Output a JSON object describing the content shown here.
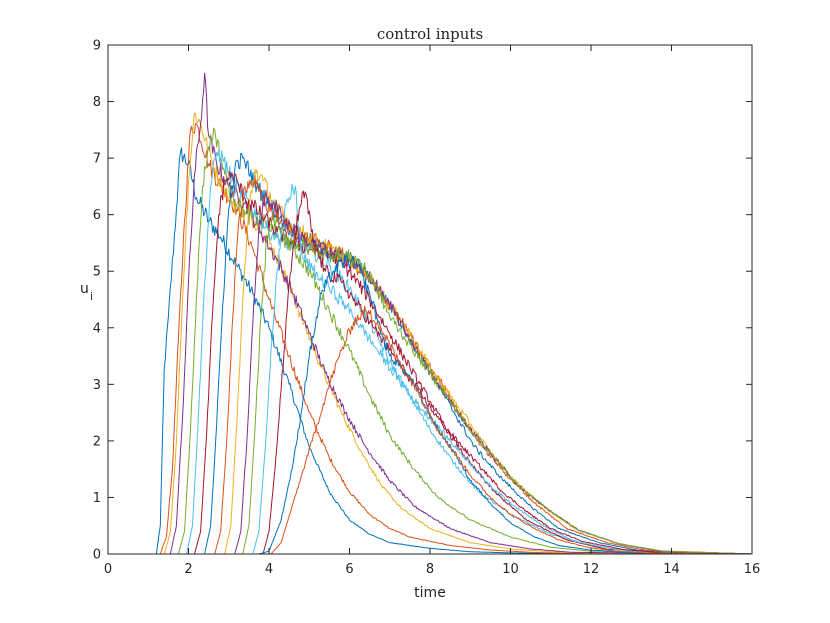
{
  "chart_data": {
    "type": "line",
    "title": "control inputs",
    "xlabel": "time",
    "ylabel": "u",
    "ylabel_subscript": "i",
    "xlim": [
      0,
      16
    ],
    "ylim": [
      0,
      9
    ],
    "xticks": [
      0,
      2,
      4,
      6,
      8,
      10,
      12,
      14,
      16
    ],
    "yticks": [
      0,
      1,
      2,
      3,
      4,
      5,
      6,
      7,
      8,
      9
    ],
    "grid": false,
    "legend": "none",
    "colors": [
      "#0072BD",
      "#D95319",
      "#EDB120",
      "#7E2F8E",
      "#77AC30",
      "#4DBEEE",
      "#A2142F"
    ],
    "series": [
      {
        "x": [
          0,
          1.2,
          1.3,
          1.4,
          1.5,
          1.7,
          1.8,
          2.0,
          2.2,
          2.5,
          2.8,
          3.2,
          3.6,
          4.0,
          4.5,
          5.0,
          5.5,
          6.0,
          6.5,
          7.0,
          8.0,
          9.0,
          10.0,
          11.0,
          16.0
        ],
        "y": [
          0,
          0,
          0.5,
          3.3,
          4.2,
          6.1,
          7.1,
          6.9,
          6.3,
          5.9,
          5.6,
          5.1,
          4.6,
          4.0,
          3.0,
          1.9,
          1.1,
          0.6,
          0.35,
          0.2,
          0.1,
          0.04,
          0.02,
          0.01,
          0
        ]
      },
      {
        "x": [
          0,
          1.3,
          1.45,
          1.6,
          1.75,
          1.9,
          2.05,
          2.2,
          2.5,
          2.8,
          3.2,
          3.6,
          4.0,
          4.5,
          5.0,
          5.5,
          6.0,
          6.5,
          7.0,
          7.5,
          8.5,
          9.5,
          10.5,
          11.5,
          16.0
        ],
        "y": [
          0,
          0,
          0.3,
          1.5,
          3.8,
          5.9,
          7.5,
          7.6,
          6.9,
          6.5,
          6.1,
          5.4,
          4.5,
          3.5,
          2.5,
          1.7,
          1.1,
          0.7,
          0.45,
          0.3,
          0.15,
          0.07,
          0.03,
          0.01,
          0
        ]
      },
      {
        "x": [
          0,
          1.4,
          1.55,
          1.7,
          1.85,
          2.0,
          2.15,
          2.3,
          2.6,
          3.0,
          3.4,
          3.8,
          4.3,
          4.8,
          5.3,
          5.8,
          6.3,
          6.8,
          7.3,
          8.0,
          9.0,
          10.0,
          11.0,
          12.0,
          16.0
        ],
        "y": [
          0,
          0,
          0.4,
          2.0,
          4.5,
          6.6,
          7.8,
          7.6,
          6.9,
          6.3,
          6.0,
          5.8,
          5.1,
          4.2,
          3.3,
          2.5,
          1.8,
          1.2,
          0.8,
          0.45,
          0.2,
          0.09,
          0.04,
          0.015,
          0
        ]
      },
      {
        "x": [
          0,
          1.55,
          1.7,
          1.85,
          2.0,
          2.15,
          2.3,
          2.4,
          2.5,
          2.7,
          3.0,
          3.4,
          3.8,
          4.2,
          4.6,
          5.0,
          5.4,
          5.9,
          6.4,
          7.0,
          7.6,
          8.5,
          9.5,
          10.5,
          11.5,
          16.0
        ],
        "y": [
          0,
          0,
          0.5,
          2.4,
          4.8,
          6.7,
          7.6,
          8.5,
          7.4,
          6.9,
          6.5,
          6.2,
          5.7,
          5.2,
          4.6,
          3.9,
          3.2,
          2.5,
          1.9,
          1.3,
          0.85,
          0.45,
          0.2,
          0.09,
          0.03,
          0
        ]
      },
      {
        "x": [
          0,
          1.75,
          1.9,
          2.05,
          2.2,
          2.35,
          2.5,
          2.65,
          2.8,
          3.0,
          3.4,
          3.8,
          4.2,
          4.6,
          5.0,
          5.5,
          6.0,
          6.5,
          7.0,
          7.6,
          8.2,
          9.0,
          10.0,
          11.0,
          12.0,
          16.0
        ],
        "y": [
          0,
          0,
          0.4,
          2.2,
          4.6,
          6.5,
          7.2,
          7.5,
          7.0,
          6.5,
          6.0,
          5.9,
          5.7,
          5.4,
          5.0,
          4.3,
          3.6,
          2.8,
          2.1,
          1.5,
          1.0,
          0.6,
          0.3,
          0.12,
          0.05,
          0
        ]
      },
      {
        "x": [
          0,
          1.95,
          2.1,
          2.25,
          2.4,
          2.55,
          2.7,
          2.85,
          3.1,
          3.5,
          4.0,
          4.5,
          5.0,
          5.5,
          6.0,
          6.5,
          7.0,
          7.5,
          8.0,
          8.6,
          9.2,
          10.0,
          11.0,
          12.0,
          13.0,
          16.0
        ],
        "y": [
          0,
          0,
          0.5,
          2.5,
          4.8,
          6.5,
          7.1,
          7.0,
          6.6,
          6.2,
          5.7,
          5.5,
          5.4,
          5.1,
          4.7,
          4.1,
          3.4,
          2.8,
          2.2,
          1.6,
          1.1,
          0.7,
          0.35,
          0.15,
          0.05,
          0
        ]
      },
      {
        "x": [
          0,
          2.15,
          2.3,
          2.45,
          2.6,
          2.75,
          2.9,
          3.1,
          3.4,
          3.8,
          4.2,
          4.6,
          5.0,
          5.5,
          6.0,
          6.5,
          7.0,
          7.5,
          8.0,
          8.5,
          9.0,
          9.6,
          10.4,
          11.4,
          12.4,
          16.0
        ],
        "y": [
          0,
          0,
          0.4,
          2.1,
          4.3,
          6.0,
          6.6,
          6.7,
          6.3,
          6.0,
          5.7,
          5.5,
          5.4,
          5.3,
          5.0,
          4.5,
          3.9,
          3.3,
          2.7,
          2.1,
          1.6,
          1.1,
          0.6,
          0.25,
          0.08,
          0
        ]
      },
      {
        "x": [
          0,
          2.4,
          2.55,
          2.7,
          2.85,
          3.0,
          3.15,
          3.35,
          3.7,
          4.1,
          4.6,
          5.1,
          5.6,
          6.1,
          6.6,
          7.1,
          7.6,
          8.1,
          8.6,
          9.1,
          9.7,
          10.4,
          11.2,
          12.2,
          13.2,
          16.0
        ],
        "y": [
          0,
          0,
          0.5,
          2.3,
          4.4,
          6.1,
          6.8,
          7.0,
          6.5,
          6.1,
          5.7,
          5.5,
          5.3,
          5.2,
          4.8,
          4.3,
          3.7,
          3.1,
          2.5,
          1.9,
          1.4,
          0.9,
          0.45,
          0.2,
          0.06,
          0
        ]
      },
      {
        "x": [
          0,
          2.65,
          2.8,
          2.95,
          3.1,
          3.25,
          3.4,
          3.6,
          3.9,
          4.3,
          4.8,
          5.3,
          5.8,
          6.3,
          6.8,
          7.3,
          7.8,
          8.3,
          8.8,
          9.3,
          9.9,
          10.6,
          11.4,
          12.4,
          13.4,
          16.0
        ],
        "y": [
          0,
          0,
          0.4,
          2.0,
          4.2,
          5.9,
          6.5,
          6.6,
          6.2,
          5.9,
          5.6,
          5.5,
          5.3,
          5.0,
          4.6,
          4.1,
          3.5,
          3.0,
          2.4,
          1.9,
          1.4,
          0.9,
          0.45,
          0.2,
          0.06,
          0
        ]
      },
      {
        "x": [
          0,
          2.9,
          3.05,
          3.2,
          3.35,
          3.5,
          3.65,
          3.85,
          4.2,
          4.6,
          5.0,
          5.5,
          6.0,
          6.5,
          7.0,
          7.5,
          8.0,
          8.5,
          9.0,
          9.5,
          10.1,
          10.8,
          11.6,
          12.6,
          13.6,
          16.0
        ],
        "y": [
          0,
          0,
          0.5,
          2.3,
          4.5,
          6.1,
          6.8,
          6.6,
          6.1,
          5.8,
          5.6,
          5.4,
          5.2,
          4.9,
          4.4,
          3.9,
          3.3,
          2.8,
          2.3,
          1.8,
          1.3,
          0.85,
          0.45,
          0.2,
          0.06,
          0
        ]
      },
      {
        "x": [
          0,
          3.15,
          3.3,
          3.45,
          3.6,
          3.75,
          3.9,
          4.1,
          4.4,
          4.8,
          5.2,
          5.6,
          6.0,
          6.5,
          7.0,
          7.5,
          8.0,
          8.5,
          9.0,
          9.6,
          10.2,
          10.9,
          11.7,
          12.7,
          13.7,
          16.0
        ],
        "y": [
          0,
          0,
          0.4,
          2.0,
          4.1,
          5.8,
          6.3,
          6.2,
          5.9,
          5.6,
          5.4,
          5.3,
          5.2,
          4.9,
          4.4,
          3.8,
          3.2,
          2.7,
          2.2,
          1.7,
          1.2,
          0.8,
          0.42,
          0.18,
          0.05,
          0
        ]
      },
      {
        "x": [
          0,
          3.35,
          3.5,
          3.65,
          3.8,
          3.95,
          4.1,
          4.3,
          4.6,
          5.0,
          5.4,
          5.8,
          6.2,
          6.6,
          7.0,
          7.5,
          8.0,
          8.5,
          9.0,
          9.6,
          10.2,
          10.9,
          11.7,
          12.7,
          13.8,
          16.0
        ],
        "y": [
          0,
          0,
          0.5,
          2.2,
          4.2,
          5.6,
          5.9,
          5.7,
          5.5,
          5.4,
          5.3,
          5.3,
          5.2,
          4.8,
          4.2,
          3.7,
          3.2,
          2.7,
          2.2,
          1.7,
          1.2,
          0.8,
          0.42,
          0.18,
          0.05,
          0
        ]
      },
      {
        "x": [
          0,
          3.6,
          3.75,
          3.9,
          4.05,
          4.2,
          4.35,
          4.5,
          4.65,
          4.8,
          5.1,
          5.5,
          5.9,
          6.3,
          6.7,
          7.1,
          7.5,
          8.0,
          8.5,
          9.0,
          9.5,
          10.1,
          10.8,
          11.6,
          12.6,
          13.6,
          16.0
        ],
        "y": [
          0,
          0,
          0.4,
          1.8,
          3.6,
          5.0,
          5.9,
          6.3,
          6.5,
          5.3,
          5.0,
          4.7,
          4.4,
          4.0,
          3.6,
          3.2,
          2.8,
          2.4,
          2.0,
          1.6,
          1.2,
          0.85,
          0.5,
          0.22,
          0.08,
          0.02,
          0
        ]
      },
      {
        "x": [
          0,
          3.85,
          4.0,
          4.15,
          4.3,
          4.45,
          4.6,
          4.75,
          4.9,
          5.1,
          5.4,
          5.8,
          6.2,
          6.6,
          7.0,
          7.4,
          7.8,
          8.3,
          8.8,
          9.3,
          9.8,
          10.4,
          11.0,
          11.8,
          12.8,
          13.8,
          16.0
        ],
        "y": [
          0,
          0,
          0.4,
          1.5,
          2.9,
          4.3,
          5.4,
          6.1,
          6.4,
          5.5,
          5.0,
          4.8,
          4.4,
          4.0,
          3.6,
          3.2,
          2.8,
          2.3,
          1.9,
          1.5,
          1.1,
          0.75,
          0.45,
          0.22,
          0.08,
          0.02,
          0
        ]
      },
      {
        "x": [
          0,
          3.75,
          4.0,
          4.3,
          4.6,
          4.8,
          5.0,
          5.3,
          5.6,
          5.9,
          6.2,
          6.5,
          6.8,
          7.0,
          7.3,
          7.6,
          7.9,
          8.2,
          8.6,
          9.0,
          9.5,
          10.0,
          10.6,
          11.2,
          12.0,
          13.0,
          14.0,
          16.0
        ],
        "y": [
          0,
          0,
          0.05,
          0.6,
          1.6,
          2.5,
          3.5,
          4.6,
          5.0,
          5.2,
          5.1,
          4.6,
          3.9,
          3.5,
          3.3,
          3.0,
          2.6,
          2.2,
          1.8,
          1.3,
          0.9,
          0.55,
          0.3,
          0.15,
          0.07,
          0.02,
          0.01,
          0
        ]
      },
      {
        "x": [
          0,
          4.05,
          4.3,
          4.6,
          4.9,
          5.2,
          5.5,
          5.8,
          6.1,
          6.4,
          6.7,
          7.0,
          7.3,
          7.6,
          7.9,
          8.2,
          8.6,
          9.0,
          9.5,
          10.0,
          10.6,
          11.2,
          11.9,
          12.6,
          13.4,
          14.2,
          16.0
        ],
        "y": [
          0,
          0,
          0.2,
          0.9,
          1.6,
          2.3,
          3.0,
          3.6,
          4.1,
          4.3,
          4.1,
          3.7,
          3.3,
          3.0,
          2.6,
          2.2,
          1.8,
          1.4,
          1.0,
          0.7,
          0.45,
          0.25,
          0.12,
          0.05,
          0.02,
          0.01,
          0
        ]
      }
    ]
  }
}
